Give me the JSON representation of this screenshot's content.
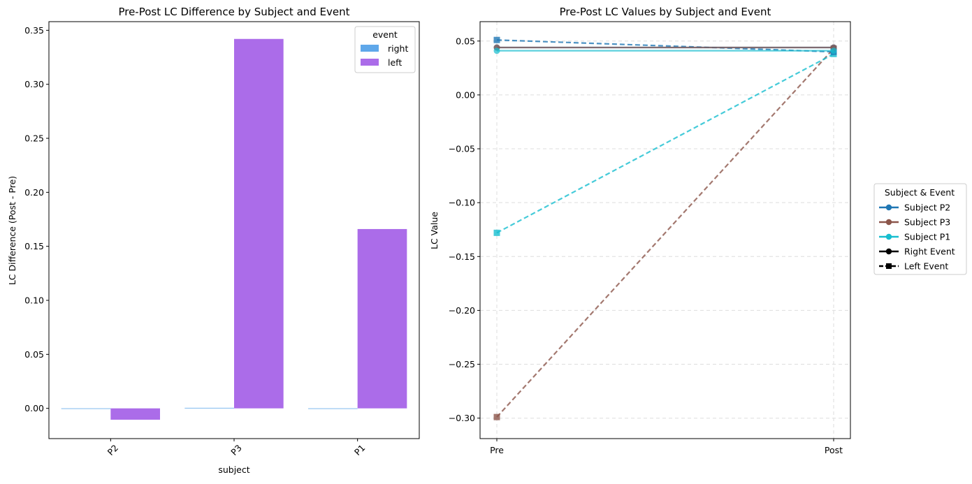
{
  "chart_data": [
    {
      "type": "bar",
      "title": "Pre-Post LC Difference by Subject and Event",
      "xlabel": "subject",
      "ylabel": "LC Difference (Post - Pre)",
      "categories": [
        "P2",
        "P3",
        "P1"
      ],
      "ylim": [
        -0.028,
        0.358
      ],
      "yticks": [
        0.0,
        0.05,
        0.1,
        0.15,
        0.2,
        0.25,
        0.3,
        0.35
      ],
      "ytick_labels": [
        "0.00",
        "0.05",
        "0.10",
        "0.15",
        "0.20",
        "0.25",
        "0.30",
        "0.35"
      ],
      "legend": {
        "title": "event",
        "placement": "top-right"
      },
      "grid": false,
      "series": [
        {
          "name": "right",
          "color": "#5fa8ea",
          "values": [
            0.0,
            0.0005,
            0.0
          ]
        },
        {
          "name": "left",
          "color": "#ab6ce9",
          "values": [
            -0.0105,
            0.342,
            0.166
          ]
        }
      ]
    },
    {
      "type": "line",
      "title": "Pre-Post LC Values by Subject and Event",
      "ylabel": "LC Value",
      "x": [
        "Pre",
        "Post"
      ],
      "ylim": [
        -0.319,
        0.068
      ],
      "yticks": [
        0.05,
        0.0,
        -0.05,
        -0.1,
        -0.15,
        -0.2,
        -0.25,
        -0.3
      ],
      "ytick_labels": [
        "0.05",
        "0.00",
        "−0.05",
        "−0.10",
        "−0.15",
        "−0.20",
        "−0.25",
        "−0.30"
      ],
      "grid": true,
      "series": [
        {
          "subject": "P2",
          "event": "right",
          "color": "#1f77b4",
          "style": "solid",
          "marker": "circle",
          "values": [
            0.044,
            0.044
          ]
        },
        {
          "subject": "P2",
          "event": "left",
          "color": "#1f77b4",
          "style": "dashed",
          "marker": "square",
          "values": [
            0.051,
            0.04
          ]
        },
        {
          "subject": "P3",
          "event": "right",
          "color": "#8c564b",
          "style": "solid",
          "marker": "circle",
          "values": [
            0.044,
            0.044
          ]
        },
        {
          "subject": "P3",
          "event": "left",
          "color": "#8c564b",
          "style": "dashed",
          "marker": "square",
          "values": [
            -0.299,
            0.043
          ]
        },
        {
          "subject": "P1",
          "event": "right",
          "color": "#17becf",
          "style": "solid",
          "marker": "circle",
          "values": [
            0.041,
            0.041
          ]
        },
        {
          "subject": "P1",
          "event": "left",
          "color": "#17becf",
          "style": "dashed",
          "marker": "square",
          "values": [
            -0.128,
            0.038
          ]
        }
      ],
      "legend": {
        "title": "Subject & Event",
        "placement": "outside-right",
        "entries": [
          {
            "label": "Subject P2",
            "color": "#1f77b4",
            "style": "solid",
            "marker": "circle"
          },
          {
            "label": "Subject P3",
            "color": "#8c564b",
            "style": "solid",
            "marker": "circle"
          },
          {
            "label": "Subject P1",
            "color": "#17becf",
            "style": "solid",
            "marker": "circle"
          },
          {
            "label": "Right Event",
            "color": "#000000",
            "style": "solid",
            "marker": "circle"
          },
          {
            "label": "Left Event",
            "color": "#000000",
            "style": "dashed",
            "marker": "square"
          }
        ]
      }
    }
  ]
}
